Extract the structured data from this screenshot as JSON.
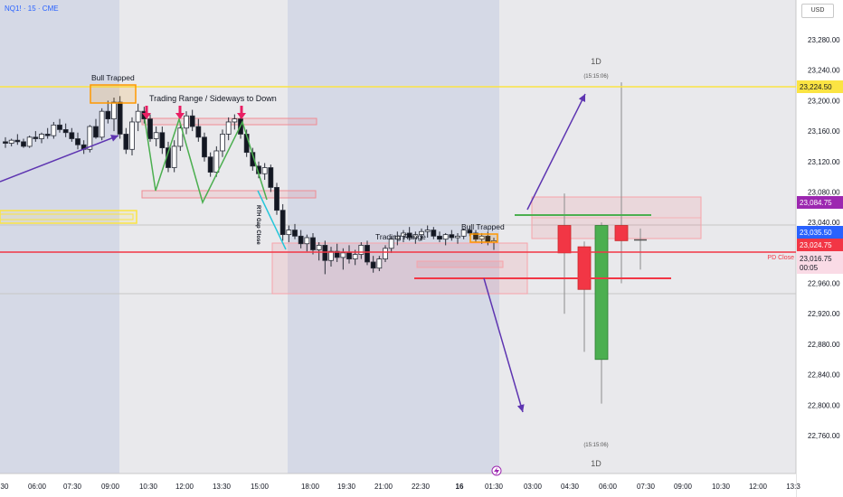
{
  "header": {
    "symbol_line": "NQ1! · 15 · CME",
    "currency": "USD",
    "lightning_icon": "lightning-icon"
  },
  "colors": {
    "up": "#4caf50",
    "down": "#f23645",
    "accent": "#2962ff",
    "purple": "#9c27b0",
    "yellow": "#fbe443"
  },
  "annotations": {
    "bull_trapped_1": "Bull Trapped",
    "range_title": "Trading Range / Sideways to Down",
    "trading_range": "Trading Range",
    "bull_trapped_2": "Bull Trapped",
    "gap_close": "RTH Gap Close",
    "one_d_top": "1D",
    "one_d_bottom": "1D",
    "time_top": "(15:15:06)",
    "time_bottom": "(15:15:06)",
    "pd_close": "PD Close"
  },
  "price_tags": {
    "yellow": "23,224.50",
    "purple": "23,084.75",
    "blue": "23,035.50",
    "red": "23,024.75",
    "last": "23,016.75",
    "countdown": "00:05"
  },
  "chart_data": {
    "type": "candlestick",
    "instrument": "NQ1! · 15 · CME",
    "currency": "USD",
    "y_ticks": [
      23280,
      23240,
      23200,
      23160,
      23120,
      23080,
      23040,
      23000,
      22960,
      22920,
      22880,
      22840,
      22800,
      22760
    ],
    "y_tick_labels": [
      "23,280.00",
      "23,240.00",
      "23,200.00",
      "23,160.00",
      "23,120.00",
      "23,080.00",
      "23,040.00",
      "23,000.00",
      "22,960.00",
      "22,920.00",
      "22,880.00",
      "22,840.00",
      "22,800.00",
      "22,760.00"
    ],
    "ylim": [
      22750,
      23300
    ],
    "x_ticks": [
      "30",
      "06:00",
      "07:30",
      "09:00",
      "10:30",
      "12:00",
      "13:30",
      "15:00",
      "18:00",
      "19:30",
      "21:00",
      "22:30",
      "16",
      "01:30",
      "03:00",
      "04:30",
      "06:00",
      "07:30",
      "09:00",
      "10:30",
      "12:00",
      "13:3"
    ],
    "candles_15m": [
      [
        23146,
        23152,
        23138,
        23144
      ],
      [
        23144,
        23150,
        23140,
        23148
      ],
      [
        23148,
        23156,
        23142,
        23146
      ],
      [
        23146,
        23150,
        23138,
        23140
      ],
      [
        23140,
        23154,
        23138,
        23152
      ],
      [
        23152,
        23160,
        23146,
        23150
      ],
      [
        23150,
        23158,
        23144,
        23156
      ],
      [
        23156,
        23164,
        23150,
        23154
      ],
      [
        23154,
        23172,
        23150,
        23168
      ],
      [
        23168,
        23176,
        23158,
        23162
      ],
      [
        23162,
        23170,
        23152,
        23158
      ],
      [
        23158,
        23164,
        23146,
        23150
      ],
      [
        23150,
        23158,
        23136,
        23142
      ],
      [
        23142,
        23148,
        23130,
        23136
      ],
      [
        23136,
        23168,
        23132,
        23166
      ],
      [
        23166,
        23176,
        23150,
        23152
      ],
      [
        23152,
        23190,
        23148,
        23186
      ],
      [
        23186,
        23200,
        23170,
        23176
      ],
      [
        23176,
        23204,
        23160,
        23198
      ],
      [
        23198,
        23206,
        23150,
        23156
      ],
      [
        23156,
        23164,
        23130,
        23136
      ],
      [
        23136,
        23178,
        23128,
        23172
      ],
      [
        23172,
        23196,
        23160,
        23186
      ],
      [
        23186,
        23192,
        23170,
        23176
      ],
      [
        23176,
        23182,
        23146,
        23150
      ],
      [
        23150,
        23166,
        23140,
        23158
      ],
      [
        23158,
        23166,
        23130,
        23138
      ],
      [
        23138,
        23146,
        23106,
        23112
      ],
      [
        23112,
        23148,
        23106,
        23140
      ],
      [
        23140,
        23170,
        23134,
        23164
      ],
      [
        23164,
        23186,
        23156,
        23180
      ],
      [
        23180,
        23188,
        23160,
        23166
      ],
      [
        23166,
        23176,
        23146,
        23152
      ],
      [
        23152,
        23158,
        23120,
        23126
      ],
      [
        23126,
        23132,
        23100,
        23106
      ],
      [
        23106,
        23140,
        23100,
        23134
      ],
      [
        23134,
        23162,
        23126,
        23156
      ],
      [
        23156,
        23178,
        23148,
        23172
      ],
      [
        23172,
        23182,
        23162,
        23176
      ],
      [
        23176,
        23180,
        23150,
        23156
      ],
      [
        23156,
        23162,
        23126,
        23132
      ],
      [
        23132,
        23138,
        23108,
        23114
      ],
      [
        23114,
        23120,
        23098,
        23104
      ],
      [
        23104,
        23118,
        23096,
        23112
      ],
      [
        23112,
        23116,
        23080,
        23086
      ],
      [
        23086,
        23092,
        23050,
        23056
      ],
      [
        23056,
        23064,
        23016,
        23024
      ],
      [
        23024,
        23036,
        23014,
        23030
      ],
      [
        23030,
        23038,
        23018,
        23022
      ],
      [
        23022,
        23030,
        23006,
        23012
      ],
      [
        23012,
        23024,
        23002,
        23020
      ],
      [
        23020,
        23026,
        22998,
        23004
      ],
      [
        23004,
        23014,
        22990,
        23010
      ],
      [
        23010,
        23016,
        22972,
        22990
      ],
      [
        22990,
        23008,
        22982,
        23002
      ],
      [
        23002,
        23012,
        22988,
        22994
      ],
      [
        22994,
        23006,
        22978,
        23000
      ],
      [
        23000,
        23010,
        22986,
        22992
      ],
      [
        22992,
        23004,
        22984,
        22998
      ],
      [
        22998,
        23014,
        22992,
        23010
      ],
      [
        23010,
        23016,
        22984,
        22988
      ],
      [
        22988,
        22996,
        22974,
        22980
      ],
      [
        22980,
        22996,
        22976,
        22992
      ],
      [
        22992,
        23010,
        22988,
        23006
      ],
      [
        23006,
        23022,
        23000,
        23018
      ],
      [
        23018,
        23028,
        23010,
        23022
      ],
      [
        23022,
        23030,
        23014,
        23026
      ],
      [
        23026,
        23034,
        23016,
        23020
      ],
      [
        23020,
        23028,
        23012,
        23024
      ],
      [
        23024,
        23032,
        23016,
        23028
      ],
      [
        23028,
        23036,
        23020,
        23030
      ],
      [
        23030,
        23034,
        23018,
        23022
      ],
      [
        23022,
        23028,
        23014,
        23018
      ],
      [
        23018,
        23026,
        23010,
        23024
      ],
      [
        23024,
        23030,
        23016,
        23020
      ],
      [
        23020,
        23026,
        23012,
        23022
      ],
      [
        23022,
        23032,
        23018,
        23030
      ],
      [
        23030,
        23036,
        23022,
        23026
      ],
      [
        23026,
        23030,
        23014,
        23018
      ],
      [
        23018,
        23026,
        23012,
        23022
      ],
      [
        23022,
        23028,
        23010,
        23014
      ],
      [
        23014,
        23020,
        23004,
        23016
      ]
    ],
    "candles_1d": [
      [
        23036,
        23078,
        22920,
        23000
      ],
      [
        23008,
        23015,
        22870,
        22952
      ],
      [
        22860,
        23040,
        22802,
        23036
      ],
      [
        23036,
        23224,
        22960,
        23016
      ],
      [
        23017,
        23032,
        22978,
        23016
      ]
    ],
    "levels": {
      "yellow_high": 23224.5,
      "purple": 23084.75,
      "blue": 23035.5,
      "red_close": 23024.75,
      "last": 23016.75
    }
  }
}
